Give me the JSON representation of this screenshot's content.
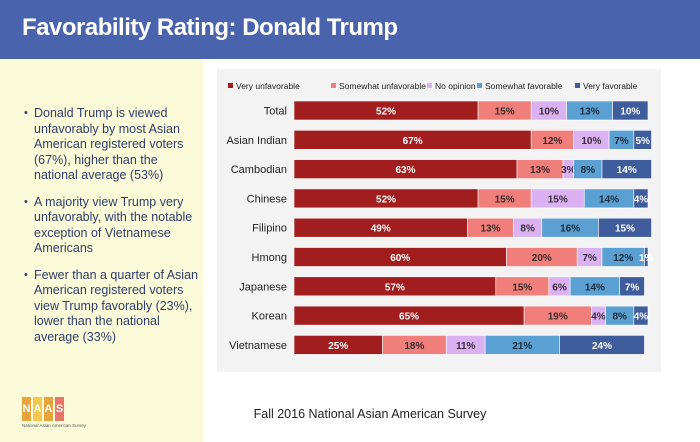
{
  "header": {
    "title": "Favorability Rating: Donald Trump"
  },
  "sidebar": {
    "bullets": [
      "Donald Trump is viewed unfavorably by most Asian American registered voters (67%), higher than the national average (53%)",
      "A majority view Trump very unfavorably, with the notable exception of Vietnamese Americans",
      "Fewer than a quarter of Asian American registered voters view Trump favorably (23%), lower than the national average (33%)"
    ]
  },
  "footer": {
    "source": "Fall 2016 National Asian American Survey"
  },
  "logo": {
    "letters": [
      "N",
      "A",
      "A",
      "S"
    ],
    "letter_colors": [
      "#e8a33d",
      "#f2c94c",
      "#e8a33d",
      "#e8746a"
    ],
    "subtitle": "National Asian American Survey"
  },
  "chart_data": {
    "type": "bar",
    "orientation": "horizontal",
    "stacked": true,
    "legend_position": "top",
    "categories": [
      "Total",
      "Asian Indian",
      "Cambodian",
      "Chinese",
      "Filipino",
      "Hmong",
      "Japanese",
      "Korean",
      "Vietnamese"
    ],
    "series": [
      {
        "name": "Very unfavorable",
        "color": "#a21e1e",
        "label_color": "#ffffff",
        "values": [
          52,
          67,
          63,
          52,
          49,
          60,
          57,
          65,
          25
        ]
      },
      {
        "name": "Somewhat unfavorable",
        "color": "#f07f7b",
        "label_color": "#3a2a2a",
        "values": [
          15,
          12,
          13,
          15,
          13,
          20,
          15,
          19,
          18
        ]
      },
      {
        "name": "No opinion",
        "color": "#dab2f1",
        "label_color": "#3a2a3a",
        "values": [
          10,
          10,
          3,
          15,
          8,
          7,
          6,
          4,
          11
        ]
      },
      {
        "name": "Somewhat favorable",
        "color": "#5aa0d2",
        "label_color": "#1e2a3a",
        "values": [
          13,
          7,
          8,
          14,
          16,
          12,
          14,
          8,
          21
        ]
      },
      {
        "name": "Very favorable",
        "color": "#3f5d9d",
        "label_color": "#ffffff",
        "values": [
          10,
          5,
          14,
          4,
          15,
          1,
          7,
          4,
          24
        ]
      }
    ],
    "value_suffix": "%",
    "xlim": [
      0,
      100
    ]
  }
}
